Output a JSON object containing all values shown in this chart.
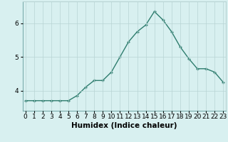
{
  "xlabel": "Humidex (Indice chaleur)",
  "ylabel": "",
  "x": [
    0,
    1,
    2,
    3,
    4,
    5,
    6,
    7,
    8,
    9,
    10,
    11,
    12,
    13,
    14,
    15,
    16,
    17,
    18,
    19,
    20,
    21,
    22,
    23
  ],
  "y": [
    3.7,
    3.7,
    3.7,
    3.7,
    3.7,
    3.7,
    3.85,
    4.1,
    4.3,
    4.3,
    4.55,
    5.0,
    5.45,
    5.75,
    5.95,
    6.35,
    6.1,
    5.75,
    5.3,
    4.95,
    4.65,
    4.65,
    4.55,
    4.25
  ],
  "line_color": "#2e7d6e",
  "marker": "+",
  "marker_size": 3.5,
  "marker_linewidth": 1.0,
  "bg_color": "#d8f0f0",
  "grid_color": "#b8d4d4",
  "ylim": [
    3.4,
    6.65
  ],
  "yticks": [
    4,
    5,
    6
  ],
  "xlim": [
    -0.3,
    23.3
  ],
  "xtick_labels": [
    "0",
    "1",
    "2",
    "3",
    "4",
    "5",
    "6",
    "7",
    "8",
    "9",
    "10",
    "11",
    "12",
    "13",
    "14",
    "15",
    "16",
    "17",
    "18",
    "19",
    "20",
    "21",
    "22",
    "23"
  ],
  "label_fontsize": 7.5,
  "tick_fontsize": 6.5,
  "line_width": 1.0
}
